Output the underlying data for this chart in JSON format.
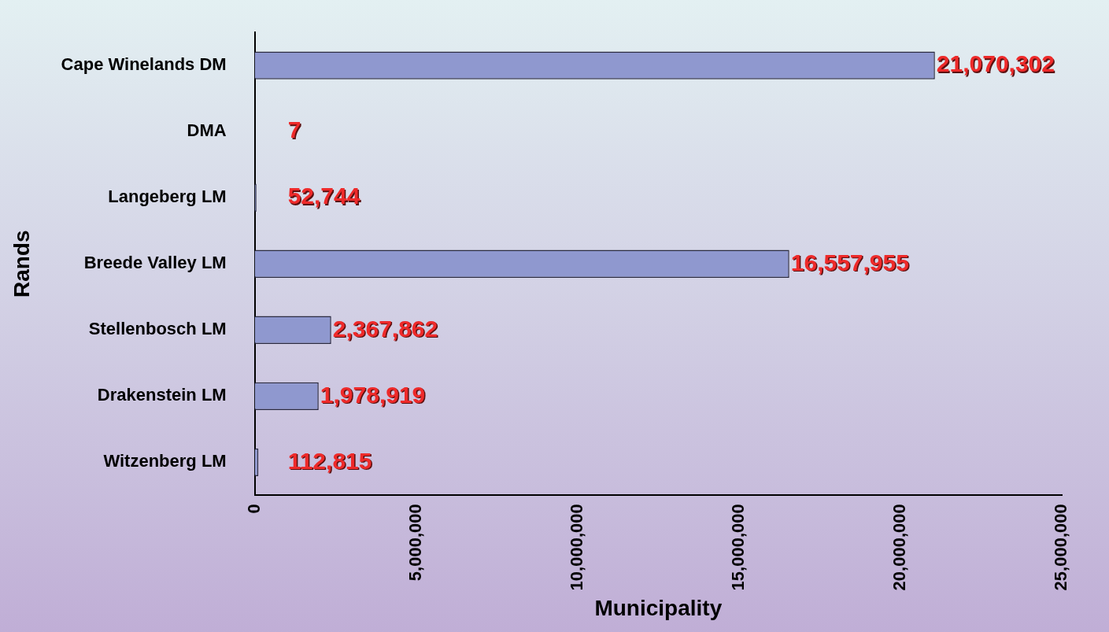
{
  "chart_data": {
    "type": "bar",
    "orientation": "horizontal",
    "xlabel": "Municipality",
    "ylabel": "Rands",
    "categories": [
      "Cape Winelands DM",
      "DMA",
      "Langeberg LM",
      "Breede Valley LM",
      "Stellenbosch LM",
      "Drakenstein LM",
      "Witzenberg LM"
    ],
    "values": [
      21070302,
      7,
      52744,
      16557955,
      2367862,
      1978919,
      112815
    ],
    "color": "#8f98cf",
    "xlim": [
      0,
      25000000
    ],
    "xticks": [
      0,
      {
        "value": 5000000,
        "label": "5,000,000"
      },
      {
        "value": 10000000,
        "label": "10,000,000"
      },
      {
        "value": 15000000,
        "label": "15,000,000"
      },
      {
        "value": 20000000,
        "label": "20,000,000"
      },
      {
        "value": 25000000,
        "label": "25,000,000"
      }
    ],
    "value_labels": [
      "21,070,302",
      "7",
      "52,744",
      "16,557,955",
      "2,367,862",
      "1,978,919",
      "112,815"
    ],
    "grid": false,
    "legend": false
  }
}
